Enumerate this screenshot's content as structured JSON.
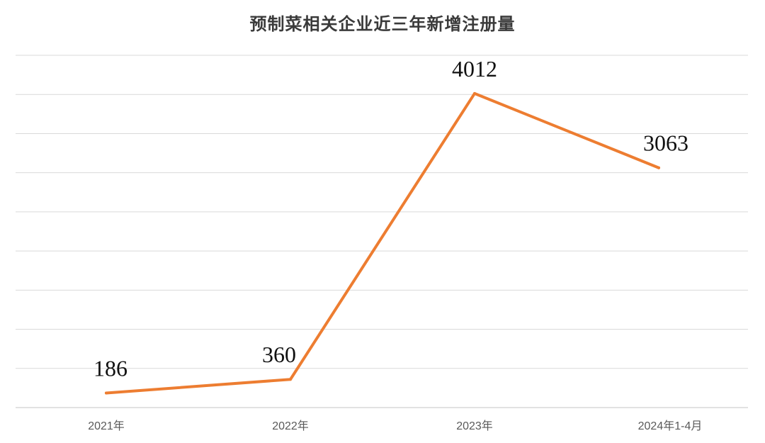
{
  "chart_data": {
    "type": "line",
    "title": "预制菜相关企业近三年新增注册量",
    "categories": [
      "2021年",
      "2022年",
      "2023年",
      "2024年1-4月"
    ],
    "series": [
      {
        "values": [
          186,
          360,
          4012,
          3063
        ],
        "color": "#ED7D31"
      }
    ],
    "data_labels": [
      "186",
      "360",
      "4012",
      "3063"
    ],
    "xlabel": "",
    "ylabel": "",
    "ylim": [
      0,
      4500
    ],
    "grid": true,
    "y_axis_labels_shown": false,
    "legend": "none",
    "gridline_color": "#d9d9d9"
  }
}
